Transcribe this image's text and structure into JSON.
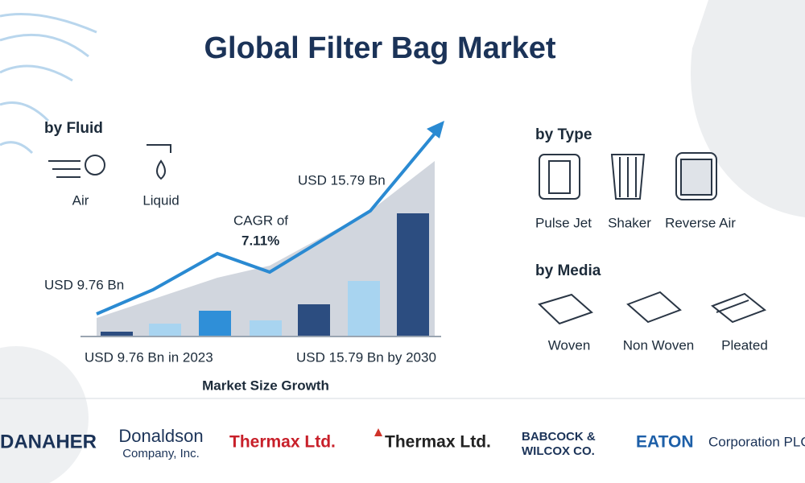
{
  "title": "Global Filter Bag Market",
  "fluid": {
    "heading": "by Fluid",
    "items": [
      "Air",
      "Liquid"
    ]
  },
  "growth": {
    "start_label": "USD 9.76 Bn",
    "end_label": "USD 15.79 Bn",
    "cagr_label": "CAGR of",
    "cagr_value": "7.11%",
    "start_caption": "USD 9.76 Bn in 2023",
    "end_caption": "USD 15.79 Bn by 2030",
    "caption": "Market Size Growth"
  },
  "type": {
    "heading": "by Type",
    "items": [
      "Pulse Jet",
      "Shaker",
      "Reverse Air"
    ]
  },
  "media": {
    "heading": "by Media",
    "items": [
      "Woven",
      "Non Woven",
      "Pleated"
    ]
  },
  "companies": [
    {
      "lines": [
        "DANAHER"
      ]
    },
    {
      "lines": [
        "Donaldson",
        "Company, Inc."
      ]
    },
    {
      "lines": [
        "Thermax Ltd."
      ]
    },
    {
      "lines": [
        "Thermax Ltd."
      ]
    },
    {
      "lines": [
        "BABCOCK &",
        "WILCOX CO."
      ]
    },
    {
      "lines": [
        "EATON",
        "Corporation PLC"
      ]
    }
  ]
}
